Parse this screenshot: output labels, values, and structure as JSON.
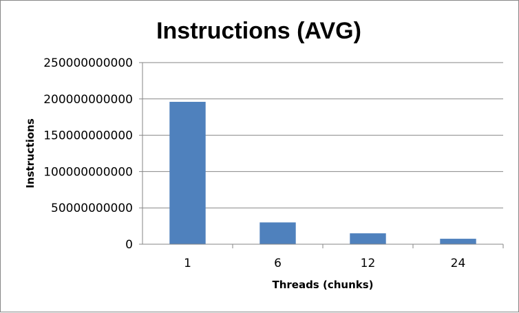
{
  "chart_data": {
    "type": "bar",
    "title": "Instructions (AVG)",
    "xlabel": "Threads (chunks)",
    "ylabel": "Instructions",
    "categories": [
      "1",
      "6",
      "12",
      "24"
    ],
    "values": [
      196000000000,
      30000000000,
      15000000000,
      7500000000
    ],
    "ylim": [
      0,
      250000000000
    ],
    "yticks": [
      0,
      50000000000,
      100000000000,
      150000000000,
      200000000000,
      250000000000
    ],
    "ytick_labels": [
      "0",
      "50000000000",
      "100000000000",
      "150000000000",
      "200000000000",
      "250000000000"
    ],
    "grid": true,
    "legend": "none",
    "bar_color": "#4f81bd"
  }
}
